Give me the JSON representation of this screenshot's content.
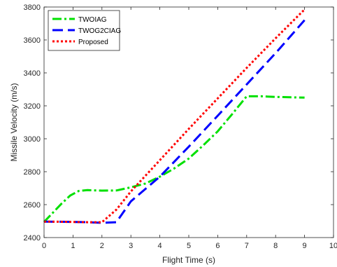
{
  "chart_data": {
    "type": "line",
    "title": "",
    "xlabel": "Flight Time (s)",
    "ylabel": "Missile Velocity (m/s)",
    "xlim": [
      0,
      10
    ],
    "ylim": [
      2400,
      3800
    ],
    "xticks": [
      0,
      1,
      2,
      3,
      4,
      5,
      6,
      7,
      8,
      9,
      10
    ],
    "xtick_labels": [
      "0",
      "1",
      "2",
      "3",
      "4",
      "5",
      "6",
      "7",
      "8",
      "9",
      "10"
    ],
    "yticks": [
      2400,
      2600,
      2800,
      3000,
      3200,
      3400,
      3600,
      3800
    ],
    "ytick_labels": [
      "2400",
      "2600",
      "2800",
      "3000",
      "3200",
      "3400",
      "3600",
      "3800"
    ],
    "grid": false,
    "legend_position": "top-left",
    "series": [
      {
        "name": "TWOIAG",
        "color": "#00e000",
        "dash": "dash-dot",
        "x": [
          0,
          0.3,
          0.6,
          0.9,
          1.2,
          1.5,
          2.0,
          2.5,
          3.0,
          3.5,
          4.0,
          4.5,
          5.0,
          5.5,
          6.0,
          6.5,
          7.0,
          7.5,
          8.0,
          8.5,
          9.0
        ],
        "y": [
          2495,
          2550,
          2605,
          2655,
          2683,
          2688,
          2685,
          2686,
          2705,
          2728,
          2770,
          2820,
          2880,
          2960,
          3045,
          3150,
          3258,
          3258,
          3254,
          3252,
          3250
        ]
      },
      {
        "name": "TWOG2CIAG",
        "color": "#0000ff",
        "dash": "dash",
        "x": [
          0,
          0.5,
          1.0,
          1.5,
          2.0,
          2.5,
          3.0,
          4.0,
          5.0,
          6.0,
          7.0,
          8.0,
          9.0
        ],
        "y": [
          2497,
          2496,
          2495,
          2493,
          2490,
          2493,
          2620,
          2770,
          2952,
          3140,
          3330,
          3520,
          3720
        ]
      },
      {
        "name": "Proposed",
        "color": "#ff0000",
        "dash": "dot",
        "x": [
          0,
          0.5,
          1.0,
          1.5,
          2.0,
          2.5,
          3.0,
          4.0,
          5.0,
          6.0,
          7.0,
          8.0,
          9.0
        ],
        "y": [
          2497,
          2496,
          2495,
          2493,
          2493,
          2570,
          2680,
          2870,
          3060,
          3245,
          3430,
          3610,
          3785
        ]
      }
    ]
  }
}
